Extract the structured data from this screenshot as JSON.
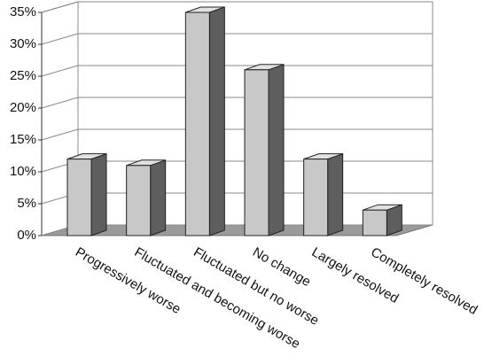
{
  "chart_data": {
    "type": "bar3d",
    "categories": [
      "Progressively worse",
      "Fluctuated and becoming worse",
      "Fluctuated but no worse",
      "No change",
      "Largely resolved",
      "Completely resolved"
    ],
    "values": [
      12,
      11,
      35,
      26,
      12,
      4
    ],
    "color": "#c8c8c8",
    "ylim": [
      0,
      35
    ],
    "yticks": [
      {
        "value": 0,
        "label": "0%"
      },
      {
        "value": 5,
        "label": "5%"
      },
      {
        "value": 10,
        "label": "10%"
      },
      {
        "value": 15,
        "label": "15%"
      },
      {
        "value": 20,
        "label": "20%"
      },
      {
        "value": 25,
        "label": "25%"
      },
      {
        "value": 30,
        "label": "30%"
      },
      {
        "value": 35,
        "label": "35%"
      }
    ],
    "grid": true
  }
}
